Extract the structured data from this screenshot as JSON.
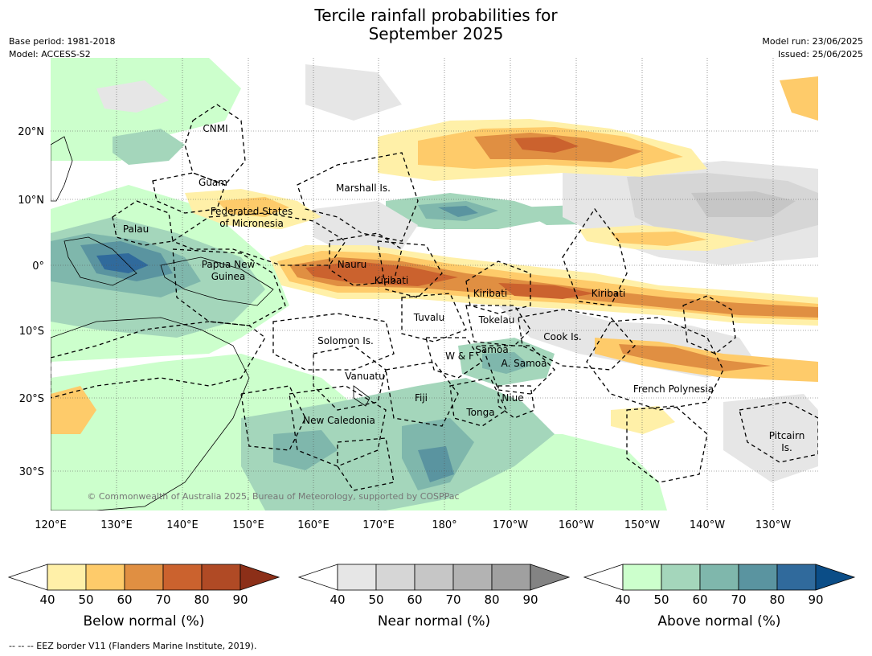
{
  "title": {
    "line1": "Tercile rainfall probabilities for",
    "line2": "September 2025"
  },
  "meta": {
    "base_period": "Base period: 1981-2018",
    "model": "Model: ACCESS-S2",
    "model_run": "Model run: 23/06/2025",
    "issued": "Issued: 25/06/2025"
  },
  "axes": {
    "lat_ticks": [
      "20°N",
      "10°N",
      "0°",
      "10°S",
      "20°S",
      "30°S"
    ],
    "lon_ticks": [
      "120°E",
      "130°E",
      "140°E",
      "150°E",
      "160°E",
      "170°E",
      "180°",
      "170°W",
      "160°W",
      "150°W",
      "140°W",
      "130°W"
    ]
  },
  "regions": {
    "cnmi": "CNMI",
    "guam": "Guam",
    "palau": "Palau",
    "fsm": "Federated States\nof Micronesia",
    "fsm_1": "Federated States",
    "fsm_2": "of Micronesia",
    "marshall": "Marshall Is.",
    "png_1": "Papua New",
    "png_2": "Guinea",
    "nauru": "Nauru",
    "kiribati_w": "Kiribati",
    "kiribati_c": "Kiribati",
    "kiribati_e": "Kiribati",
    "tuvalu": "Tuvalu",
    "tokelau": "Tokelau",
    "cook": "Cook Is.",
    "solomon": "Solomon Is.",
    "wf": "W & F",
    "samoa": "Samoa",
    "asamoa": "A. Samoa",
    "vanuatu": "Vanuatu",
    "fiji": "Fiji",
    "niue": "Niue",
    "tonga": "Tonga",
    "french_poly": "French Polynesia",
    "pitcairn_1": "Pitcairn",
    "pitcairn_2": "Is.",
    "new_caledonia": "New Caledonia"
  },
  "credit": "© Commonwealth of Australia 2025, Bureau of Meteorology, supported by COSPPac",
  "colorbars": [
    {
      "title": "Below normal (%)",
      "ticks": [
        "40",
        "50",
        "60",
        "70",
        "80",
        "90"
      ],
      "colors": [
        "#ffffff",
        "#fff0a8",
        "#fecb6a",
        "#e08f42",
        "#cb622e",
        "#b04a25",
        "#8c2f18"
      ]
    },
    {
      "title": "Near normal (%)",
      "ticks": [
        "40",
        "50",
        "60",
        "70",
        "80",
        "90"
      ],
      "colors": [
        "#ffffff",
        "#e6e6e6",
        "#d6d6d6",
        "#c6c6c6",
        "#b3b3b3",
        "#a0a0a0",
        "#838383"
      ]
    },
    {
      "title": "Above normal (%)",
      "ticks": [
        "40",
        "50",
        "60",
        "70",
        "80",
        "90"
      ],
      "colors": [
        "#ffffff",
        "#ccffcc",
        "#a4d6bb",
        "#7fb7ac",
        "#5a94a0",
        "#306a9c",
        "#0b4d87"
      ]
    }
  ],
  "footnote": "--  --  -- EEZ border V11 (Flanders Marine Institute, 2019)."
}
